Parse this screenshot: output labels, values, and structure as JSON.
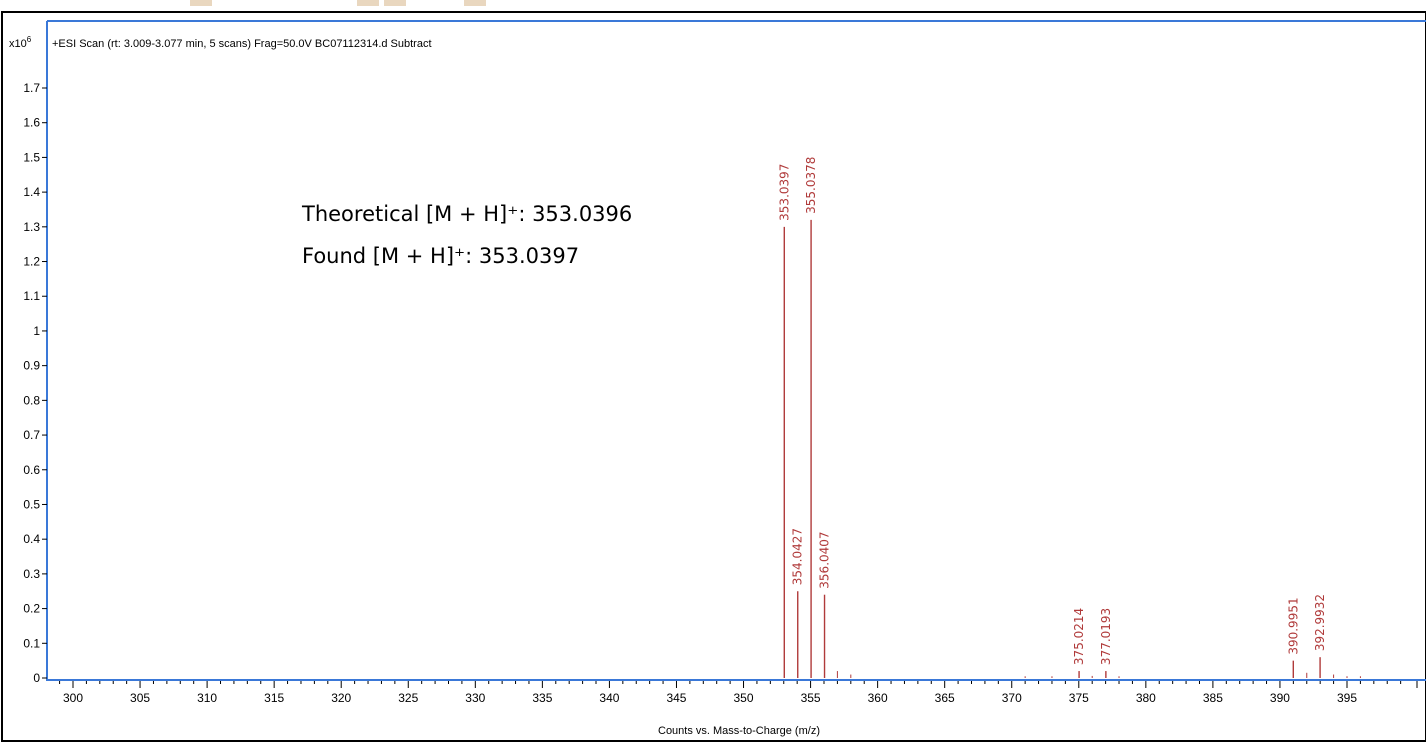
{
  "chart_data": {
    "type": "bar",
    "header": "+ESI Scan (rt: 3.009-3.077 min, 5 scans) Frag=50.0V BC07112314.d  Subtract",
    "y_scale_base": "x10",
    "y_scale_exp": "6",
    "xlabel": "Counts vs. Mass-to-Charge (m/z)",
    "ylabel": "",
    "xlim": [
      298,
      400
    ],
    "ylim": [
      0,
      1.78
    ],
    "x_ticks": [
      300,
      305,
      310,
      315,
      320,
      325,
      330,
      335,
      340,
      345,
      350,
      355,
      360,
      365,
      370,
      375,
      380,
      385,
      390,
      395
    ],
    "y_ticks": [
      0,
      0.1,
      0.2,
      0.3,
      0.4,
      0.5,
      0.6,
      0.7,
      0.8,
      0.9,
      1,
      1.1,
      1.2,
      1.3,
      1.4,
      1.5,
      1.6,
      1.7
    ],
    "y_tick_labels": [
      "0",
      "0.1",
      "0.2",
      "0.3",
      "0.4",
      "0.5",
      "0.6",
      "0.7",
      "0.8",
      "0.9",
      "1",
      "1.1",
      "1.2",
      "1.3",
      "1.4",
      "1.5",
      "1.6",
      "1.7"
    ],
    "peaks": [
      {
        "mz": 353.0397,
        "intensity": 1.3,
        "label": "353.0397"
      },
      {
        "mz": 354.0427,
        "intensity": 0.25,
        "label": "354.0427"
      },
      {
        "mz": 355.0378,
        "intensity": 1.32,
        "label": "355.0378"
      },
      {
        "mz": 356.0407,
        "intensity": 0.24,
        "label": "356.0407"
      },
      {
        "mz": 375.0214,
        "intensity": 0.02,
        "label": "375.0214"
      },
      {
        "mz": 377.0193,
        "intensity": 0.02,
        "label": "377.0193"
      },
      {
        "mz": 390.9951,
        "intensity": 0.05,
        "label": "390.9951"
      },
      {
        "mz": 392.9932,
        "intensity": 0.06,
        "label": "392.9932"
      }
    ],
    "minor_peaks": [
      {
        "mz": 357.0,
        "intensity": 0.02
      },
      {
        "mz": 358.0,
        "intensity": 0.01
      },
      {
        "mz": 371.0,
        "intensity": 0.005
      },
      {
        "mz": 373.0,
        "intensity": 0.005
      },
      {
        "mz": 376.0,
        "intensity": 0.006
      },
      {
        "mz": 378.0,
        "intensity": 0.005
      },
      {
        "mz": 392.0,
        "intensity": 0.015
      },
      {
        "mz": 394.0,
        "intensity": 0.01
      },
      {
        "mz": 395.0,
        "intensity": 0.005
      },
      {
        "mz": 396.0,
        "intensity": 0.005
      }
    ],
    "annotations": [
      {
        "text": "Theoretical [M + H]⁺: 353.0396"
      },
      {
        "text": "Found [M + H]⁺: 353.0397"
      }
    ],
    "colors": {
      "peak": "#b03a3a",
      "plot_border": "#3a78d8",
      "axis": "#000000"
    }
  }
}
